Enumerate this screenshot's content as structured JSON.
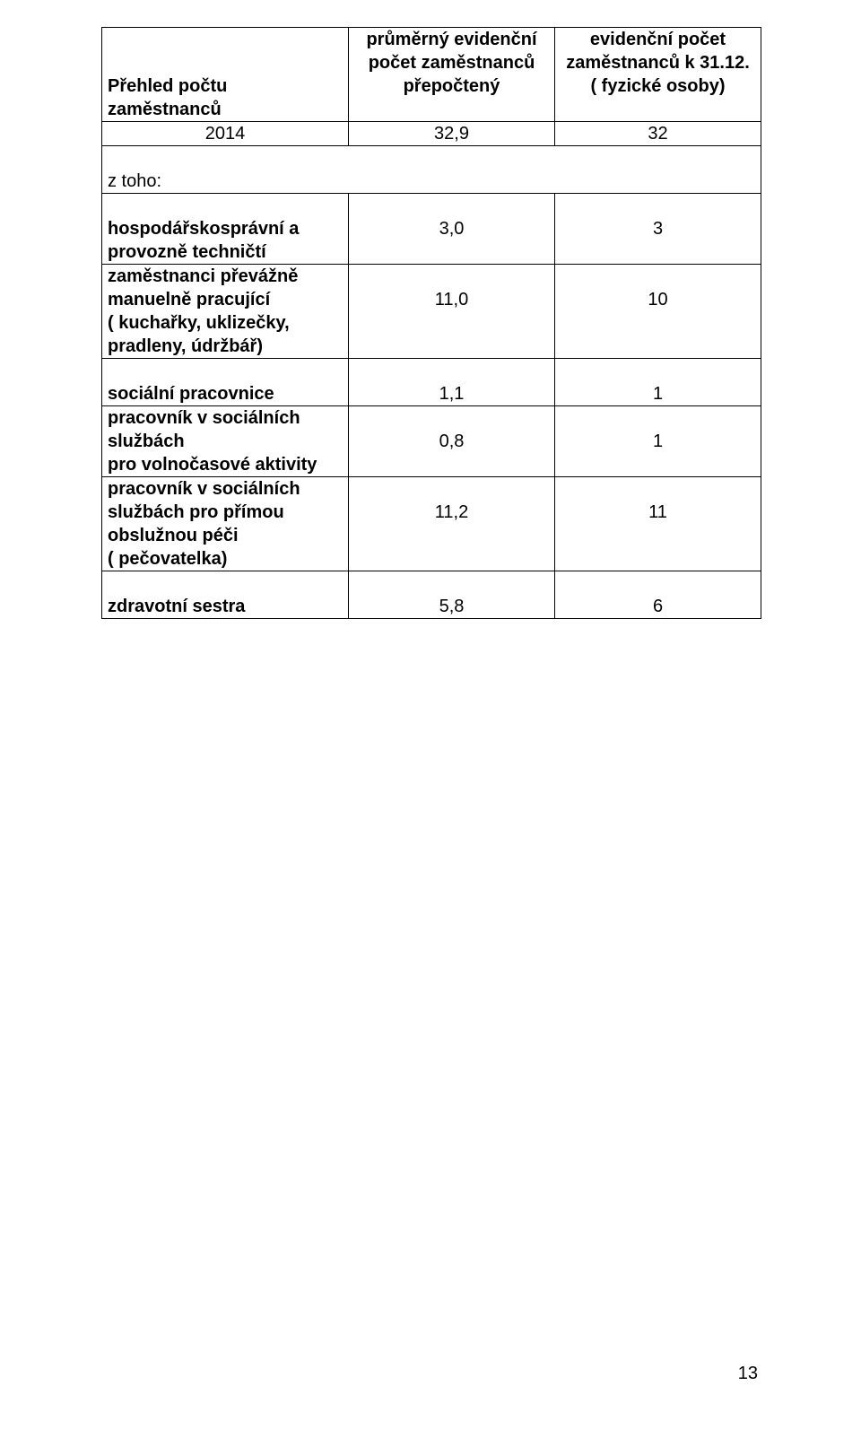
{
  "header": {
    "col1_line1": "",
    "col1_line2": "",
    "col1_line3": "Přehled počtu zaměstnanců",
    "col2_line1": "průměrný evidenční",
    "col2_line2": "počet zaměstnanců",
    "col2_line3": "přepočtený",
    "col3_line1": "evidenční počet",
    "col3_line2": "zaměstnanců k 31.12.",
    "col3_line3": "( fyzické osoby)"
  },
  "row_year": {
    "label": "2014",
    "v1": "32,9",
    "v2": "32"
  },
  "z_toho": "z toho:",
  "block1": {
    "l1": "hospodářskosprávní a",
    "l2": "provozně techničtí",
    "v1": "3,0",
    "v2": "3"
  },
  "block2": {
    "l1": "zaměstnanci převážně",
    "l2": "manuelně pracující",
    "l3": "( kuchařky, uklizečky,",
    "l4": "pradleny, údržbář)",
    "v1": "11,0",
    "v2": "10"
  },
  "block3": {
    "l1": "sociální pracovnice",
    "v1": "1,1",
    "v2": "1"
  },
  "block4": {
    "l1": "pracovník v sociálních",
    "l2": "službách",
    "l3": "pro volnočasové aktivity",
    "v1": "0,8",
    "v2": "1"
  },
  "block5": {
    "l1": "pracovník v sociálních",
    "l2": "službách pro přímou",
    "l3": "obslužnou péči",
    "l4": "( pečovatelka)",
    "v1": "11,2",
    "v2": "11"
  },
  "block6": {
    "l1": "zdravotní sestra",
    "v1": "5,8",
    "v2": "6"
  },
  "page_number": "13"
}
